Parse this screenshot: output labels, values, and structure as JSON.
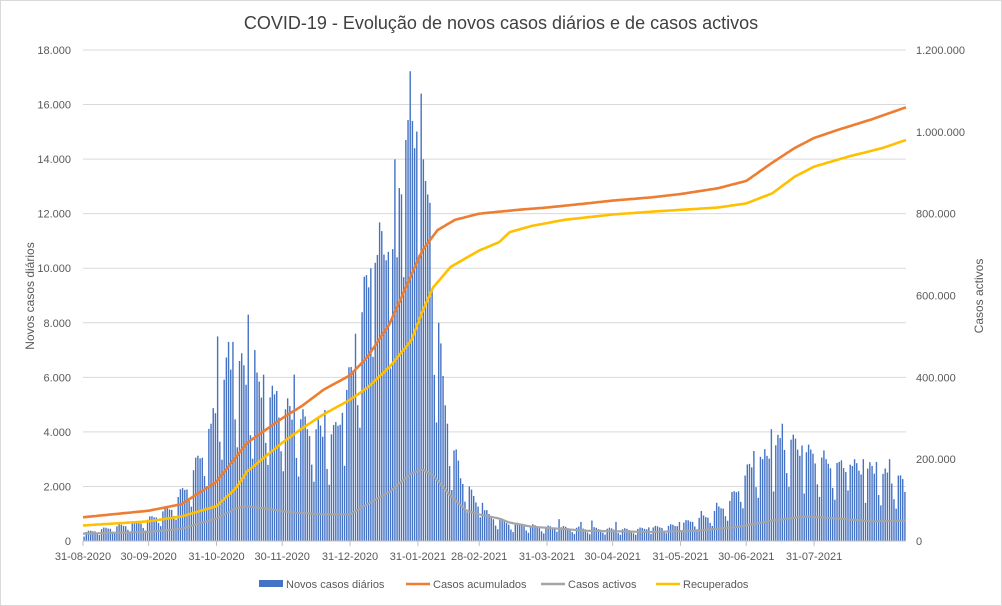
{
  "chart_data": {
    "type": "bar+line",
    "title": "COVID-19 - Evolução de novos casos diários e de casos activos",
    "ylabel_left": "Novos casos diários",
    "ylabel_right": "Casos activos",
    "ylim_left": [
      0,
      18000
    ],
    "ylim_right": [
      0,
      1200000
    ],
    "left_ticks": [
      "0",
      "2.000",
      "4.000",
      "6.000",
      "8.000",
      "10.000",
      "12.000",
      "14.000",
      "16.000",
      "18.000"
    ],
    "right_ticks": [
      "0",
      "200.000",
      "400.000",
      "600.000",
      "800.000",
      "1.000.000",
      "1.200.000"
    ],
    "x_ticks": [
      "31-08-2020",
      "30-09-2020",
      "31-10-2020",
      "30-11-2020",
      "31-12-2020",
      "31-01-2021",
      "28-02-2021",
      "31-03-2021",
      "30-04-2021",
      "31-05-2021",
      "30-06-2021",
      "31-07-2021"
    ],
    "x_tick_days": [
      0,
      30,
      61,
      91,
      122,
      153,
      181,
      212,
      242,
      273,
      303,
      334
    ],
    "total_days": 376,
    "colors": {
      "new_cases": "#4472c4",
      "cumulative": "#ed7d31",
      "active": "#a5a5a5",
      "recovered": "#ffc000",
      "grid": "#d9d9d9",
      "axis": "#bfbfbf"
    },
    "new_cases_keypoints": [
      [
        0,
        300
      ],
      [
        14,
        500
      ],
      [
        28,
        700
      ],
      [
        40,
        1200
      ],
      [
        48,
        2100
      ],
      [
        55,
        3400
      ],
      [
        62,
        5200
      ],
      [
        68,
        6500
      ],
      [
        75,
        5600
      ],
      [
        82,
        5200
      ],
      [
        90,
        4700
      ],
      [
        98,
        4300
      ],
      [
        106,
        3900
      ],
      [
        114,
        3700
      ],
      [
        122,
        5800
      ],
      [
        130,
        9300
      ],
      [
        137,
        10500
      ],
      [
        143,
        12500
      ],
      [
        148,
        14700
      ],
      [
        152,
        15800
      ],
      [
        156,
        12500
      ],
      [
        160,
        8700
      ],
      [
        164,
        5500
      ],
      [
        168,
        3400
      ],
      [
        173,
        2200
      ],
      [
        178,
        1500
      ],
      [
        185,
        900
      ],
      [
        195,
        600
      ],
      [
        210,
        500
      ],
      [
        230,
        450
      ],
      [
        250,
        400
      ],
      [
        270,
        550
      ],
      [
        285,
        900
      ],
      [
        295,
        1400
      ],
      [
        305,
        2700
      ],
      [
        315,
        3300
      ],
      [
        322,
        3600
      ],
      [
        330,
        3100
      ],
      [
        345,
        2700
      ],
      [
        360,
        2500
      ],
      [
        376,
        2000
      ]
    ],
    "new_cases_spikes": [
      [
        58,
        4300
      ],
      [
        61,
        7500
      ],
      [
        66,
        7300
      ],
      [
        68,
        7300
      ],
      [
        71,
        6600
      ],
      [
        75,
        8300
      ],
      [
        78,
        7000
      ],
      [
        82,
        6100
      ],
      [
        88,
        5500
      ],
      [
        96,
        6100
      ],
      [
        110,
        4800
      ],
      [
        118,
        4700
      ],
      [
        124,
        7600
      ],
      [
        131,
        10000
      ],
      [
        133,
        10200
      ],
      [
        139,
        10600
      ],
      [
        141,
        10700
      ],
      [
        143,
        10400
      ],
      [
        147,
        14700
      ],
      [
        150,
        15400
      ],
      [
        151,
        14400
      ],
      [
        154,
        16400
      ],
      [
        156,
        13200
      ],
      [
        158,
        12400
      ],
      [
        162,
        8000
      ],
      [
        166,
        4300
      ],
      [
        172,
        2300
      ],
      [
        176,
        2000
      ],
      [
        182,
        1400
      ],
      [
        217,
        800
      ],
      [
        227,
        700
      ],
      [
        232,
        750
      ],
      [
        243,
        700
      ],
      [
        258,
        500
      ],
      [
        272,
        700
      ],
      [
        282,
        1100
      ],
      [
        289,
        1400
      ],
      [
        296,
        1800
      ],
      [
        302,
        2400
      ],
      [
        306,
        3300
      ],
      [
        310,
        3000
      ],
      [
        314,
        4100
      ],
      [
        319,
        4300
      ],
      [
        324,
        3900
      ],
      [
        328,
        3500
      ],
      [
        333,
        3200
      ],
      [
        339,
        3000
      ],
      [
        345,
        2900
      ],
      [
        350,
        2800
      ],
      [
        356,
        3000
      ],
      [
        362,
        2900
      ],
      [
        368,
        3000
      ],
      [
        372,
        2400
      ],
      [
        375,
        1800
      ]
    ],
    "cumulative_keypoints": [
      [
        0,
        58000
      ],
      [
        30,
        74000
      ],
      [
        45,
        90000
      ],
      [
        61,
        145000
      ],
      [
        75,
        240000
      ],
      [
        91,
        300000
      ],
      [
        100,
        330000
      ],
      [
        110,
        370000
      ],
      [
        122,
        405000
      ],
      [
        130,
        450000
      ],
      [
        140,
        530000
      ],
      [
        150,
        650000
      ],
      [
        155,
        710000
      ],
      [
        162,
        760000
      ],
      [
        170,
        785000
      ],
      [
        181,
        800000
      ],
      [
        200,
        810000
      ],
      [
        212,
        815000
      ],
      [
        230,
        825000
      ],
      [
        242,
        832000
      ],
      [
        260,
        840000
      ],
      [
        273,
        848000
      ],
      [
        290,
        862000
      ],
      [
        303,
        880000
      ],
      [
        315,
        925000
      ],
      [
        325,
        960000
      ],
      [
        334,
        985000
      ],
      [
        345,
        1005000
      ],
      [
        360,
        1030000
      ],
      [
        376,
        1060000
      ]
    ],
    "recovered_keypoints": [
      [
        0,
        38000
      ],
      [
        30,
        48000
      ],
      [
        45,
        60000
      ],
      [
        61,
        85000
      ],
      [
        70,
        130000
      ],
      [
        75,
        170000
      ],
      [
        91,
        240000
      ],
      [
        100,
        275000
      ],
      [
        110,
        310000
      ],
      [
        122,
        345000
      ],
      [
        130,
        375000
      ],
      [
        140,
        425000
      ],
      [
        150,
        490000
      ],
      [
        155,
        560000
      ],
      [
        160,
        620000
      ],
      [
        168,
        670000
      ],
      [
        181,
        710000
      ],
      [
        190,
        730000
      ],
      [
        195,
        755000
      ],
      [
        205,
        770000
      ],
      [
        220,
        785000
      ],
      [
        242,
        798000
      ],
      [
        260,
        805000
      ],
      [
        290,
        815000
      ],
      [
        303,
        825000
      ],
      [
        315,
        850000
      ],
      [
        325,
        890000
      ],
      [
        334,
        915000
      ],
      [
        350,
        940000
      ],
      [
        365,
        960000
      ],
      [
        376,
        980000
      ]
    ],
    "active_keypoints": [
      [
        0,
        18000
      ],
      [
        30,
        22000
      ],
      [
        45,
        30000
      ],
      [
        61,
        55000
      ],
      [
        70,
        80000
      ],
      [
        75,
        85000
      ],
      [
        85,
        78000
      ],
      [
        95,
        70000
      ],
      [
        110,
        65000
      ],
      [
        122,
        65000
      ],
      [
        130,
        90000
      ],
      [
        140,
        120000
      ],
      [
        150,
        165000
      ],
      [
        155,
        175000
      ],
      [
        160,
        160000
      ],
      [
        168,
        110000
      ],
      [
        175,
        75000
      ],
      [
        181,
        65000
      ],
      [
        190,
        55000
      ],
      [
        195,
        45000
      ],
      [
        205,
        35000
      ],
      [
        230,
        25000
      ],
      [
        260,
        22000
      ],
      [
        280,
        25000
      ],
      [
        300,
        35000
      ],
      [
        315,
        50000
      ],
      [
        330,
        60000
      ],
      [
        345,
        55000
      ],
      [
        360,
        48000
      ],
      [
        376,
        50000
      ]
    ],
    "legend": [
      {
        "key": "new_cases",
        "label": "Novos casos diários",
        "kind": "bar"
      },
      {
        "key": "cumulative",
        "label": "Casos acumulados",
        "kind": "line"
      },
      {
        "key": "active",
        "label": "Casos activos",
        "kind": "line"
      },
      {
        "key": "recovered",
        "label": "Recuperados",
        "kind": "line"
      }
    ]
  }
}
